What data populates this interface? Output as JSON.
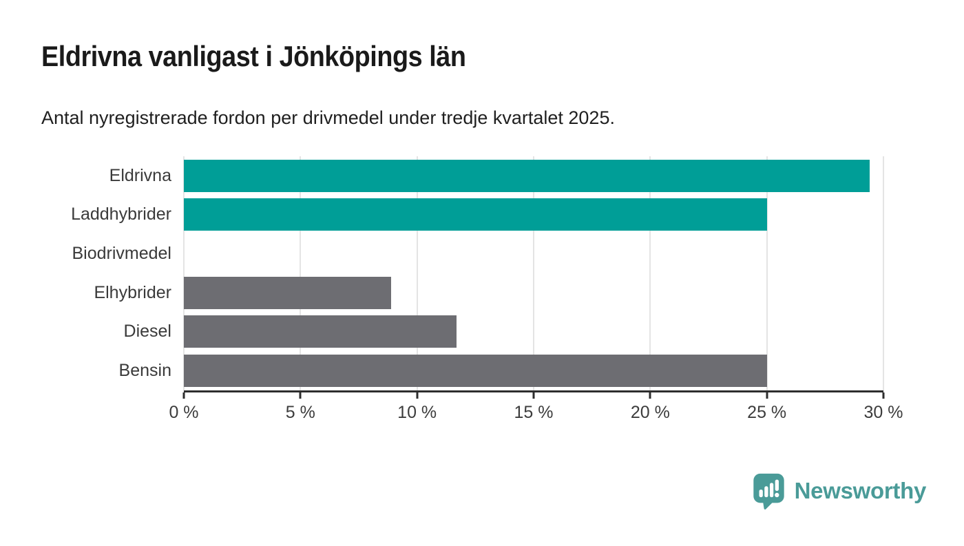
{
  "header": {
    "title": "Eldrivna vanligast i Jönköpings län",
    "subtitle": "Antal nyregistrerade fordon per drivmedel under tredje kvartalet 2025."
  },
  "chart_data": {
    "type": "bar",
    "orientation": "horizontal",
    "title": "Eldrivna vanligast i Jönköpings län",
    "subtitle": "Antal nyregistrerade fordon per drivmedel under tredje kvartalet 2025.",
    "categories": [
      "Eldrivna",
      "Laddhybrider",
      "Biodrivmedel",
      "Elhybrider",
      "Diesel",
      "Bensin"
    ],
    "values": [
      29.4,
      25,
      0,
      8.9,
      11.7,
      25
    ],
    "unit": "%",
    "xlim": [
      0,
      30
    ],
    "x_ticks": [
      0,
      5,
      10,
      15,
      20,
      25,
      30
    ],
    "x_tick_labels": [
      "0 %",
      "5 %",
      "10 %",
      "15 %",
      "20 %",
      "25 %",
      "30 %"
    ],
    "bar_colors": [
      "#009e97",
      "#009e97",
      "#009e97",
      "#6d6d72",
      "#6d6d72",
      "#6d6d72"
    ],
    "highlight_color": "#009e97",
    "default_color": "#6d6d72",
    "gridline_color": "#e4e4e4",
    "axis_color": "#2d2d2d",
    "grid": true,
    "legend": false
  },
  "footer": {
    "brand": "Newsworthy",
    "brand_color": "#4a9b98",
    "icon": "newsworthy-speech-bubble-chart-icon"
  }
}
